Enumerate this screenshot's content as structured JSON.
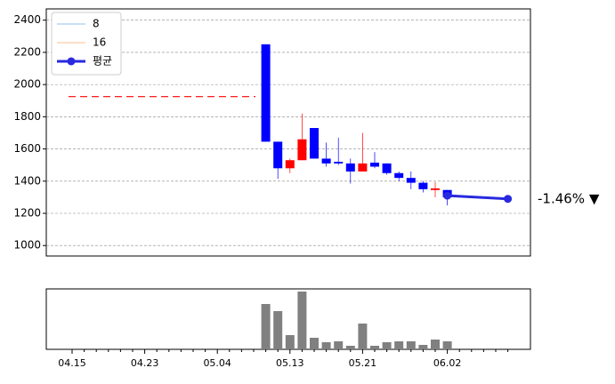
{
  "chart_data": [
    {
      "type": "candlestick",
      "categories": [
        "04.15",
        null,
        null,
        null,
        null,
        null,
        "04.23",
        null,
        null,
        null,
        null,
        null,
        "05.04",
        null,
        null,
        null,
        null,
        null,
        "05.13",
        null,
        null,
        null,
        null,
        null,
        "05.21",
        null,
        null,
        null,
        null,
        null,
        null,
        "06.02",
        null,
        null,
        null,
        null,
        null
      ],
      "open": [
        null,
        null,
        null,
        null,
        null,
        null,
        null,
        null,
        null,
        null,
        null,
        null,
        null,
        null,
        null,
        null,
        2250,
        1645,
        1480,
        1530,
        1730,
        1540,
        1520,
        1510,
        1460,
        1515,
        1510,
        1450,
        1420,
        1390,
        1345,
        1345,
        null,
        null,
        null,
        null,
        null
      ],
      "high": [
        null,
        null,
        null,
        null,
        null,
        null,
        null,
        null,
        null,
        null,
        null,
        null,
        null,
        null,
        null,
        null,
        2250,
        1645,
        1540,
        1820,
        1730,
        1640,
        1670,
        1540,
        1700,
        1580,
        1510,
        1460,
        1460,
        1400,
        1395,
        1345,
        null,
        null,
        null,
        null,
        null
      ],
      "low": [
        null,
        null,
        null,
        null,
        null,
        null,
        null,
        null,
        null,
        null,
        null,
        null,
        null,
        null,
        null,
        null,
        1645,
        1415,
        1450,
        1530,
        1540,
        1490,
        1500,
        1385,
        1460,
        1480,
        1440,
        1400,
        1350,
        1330,
        1300,
        1250,
        null,
        null,
        null,
        null,
        null
      ],
      "close": [
        null,
        null,
        null,
        null,
        null,
        null,
        null,
        null,
        null,
        null,
        null,
        null,
        null,
        null,
        null,
        null,
        1645,
        1480,
        1530,
        1660,
        1540,
        1510,
        1510,
        1460,
        1510,
        1490,
        1450,
        1420,
        1390,
        1350,
        1355,
        1300,
        null,
        null,
        null,
        null,
        null
      ],
      "up_color": "#ff0000",
      "down_color": "#0000ff",
      "series": [
        {
          "name": "8",
          "color": "#8ec3ef",
          "values": [
            null,
            null,
            null,
            null,
            null,
            null,
            null,
            null,
            null,
            null,
            null,
            null,
            null,
            null,
            null,
            null,
            null,
            null,
            null,
            null,
            null,
            null,
            null,
            null,
            null,
            null,
            null,
            null,
            null,
            null,
            null,
            null,
            null,
            null,
            null,
            null,
            null
          ]
        },
        {
          "name": "16",
          "color": "#f5bf8f",
          "values": [
            null,
            null,
            null,
            null,
            null,
            null,
            null,
            null,
            null,
            null,
            null,
            null,
            null,
            null,
            null,
            null,
            null,
            null,
            null,
            null,
            null,
            null,
            null,
            null,
            null,
            null,
            null,
            null,
            null,
            null,
            null,
            null,
            null,
            null,
            null,
            null,
            null
          ]
        },
        {
          "name": "평균",
          "color": "#2929e0",
          "values": [
            null,
            null,
            null,
            null,
            null,
            null,
            null,
            null,
            null,
            null,
            null,
            null,
            null,
            null,
            null,
            null,
            null,
            null,
            null,
            null,
            null,
            null,
            null,
            null,
            null,
            null,
            null,
            null,
            null,
            null,
            null,
            1310,
            null,
            null,
            null,
            null,
            1290
          ]
        }
      ],
      "reference_line": {
        "value": 1925,
        "color": "#ff0000"
      },
      "annotation": {
        "text": "-1.46% ▼",
        "color": "#0000ff"
      },
      "ylim": [
        935,
        2470
      ],
      "yticks": [
        1000,
        1200,
        1400,
        1600,
        1800,
        2000,
        2200,
        2400
      ],
      "grid": true,
      "legend": "upper left"
    },
    {
      "type": "bar",
      "values": [
        0,
        0,
        0,
        0,
        0,
        0,
        0,
        0,
        0,
        0,
        0,
        0,
        0,
        0,
        0,
        0,
        51,
        43,
        16,
        65,
        13,
        8,
        9,
        4,
        29,
        4,
        8,
        9,
        9,
        5,
        11,
        9,
        null,
        null,
        null,
        null,
        null
      ],
      "color": "#808080",
      "ylim": [
        0,
        68
      ]
    }
  ]
}
